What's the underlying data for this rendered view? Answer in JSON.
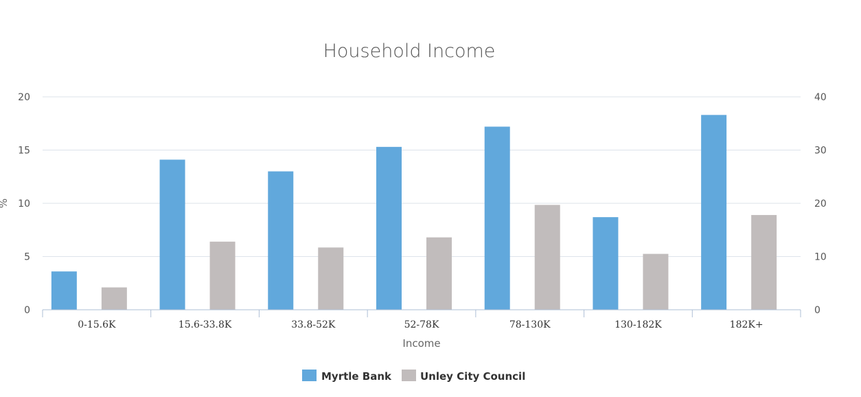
{
  "chart_data": {
    "type": "bar",
    "title": "Household Income",
    "xlabel": "Income",
    "ylabel": "%",
    "categories": [
      "0-15.6K",
      "15.6-33.8K",
      "33.8-52K",
      "52-78K",
      "78-130K",
      "130-182K",
      "182K+"
    ],
    "series": [
      {
        "name": "Myrtle Bank",
        "color": "#61a8dc",
        "axis": "left",
        "values": [
          3.6,
          14.1,
          13.0,
          15.3,
          17.2,
          8.7,
          18.3
        ]
      },
      {
        "name": "Unley City Council",
        "color": "#c1bcbc",
        "axis": "right",
        "values": [
          4.2,
          12.8,
          11.7,
          13.6,
          19.7,
          10.5,
          17.8
        ]
      }
    ],
    "y_left": {
      "min": 0,
      "max": 20,
      "ticks": [
        "0",
        "5",
        "10",
        "15",
        "20"
      ]
    },
    "y_right": {
      "min": 0,
      "max": 40,
      "ticks": [
        "0",
        "10",
        "20",
        "30",
        "40"
      ]
    },
    "grid": true,
    "legend_position": "bottom-center"
  }
}
